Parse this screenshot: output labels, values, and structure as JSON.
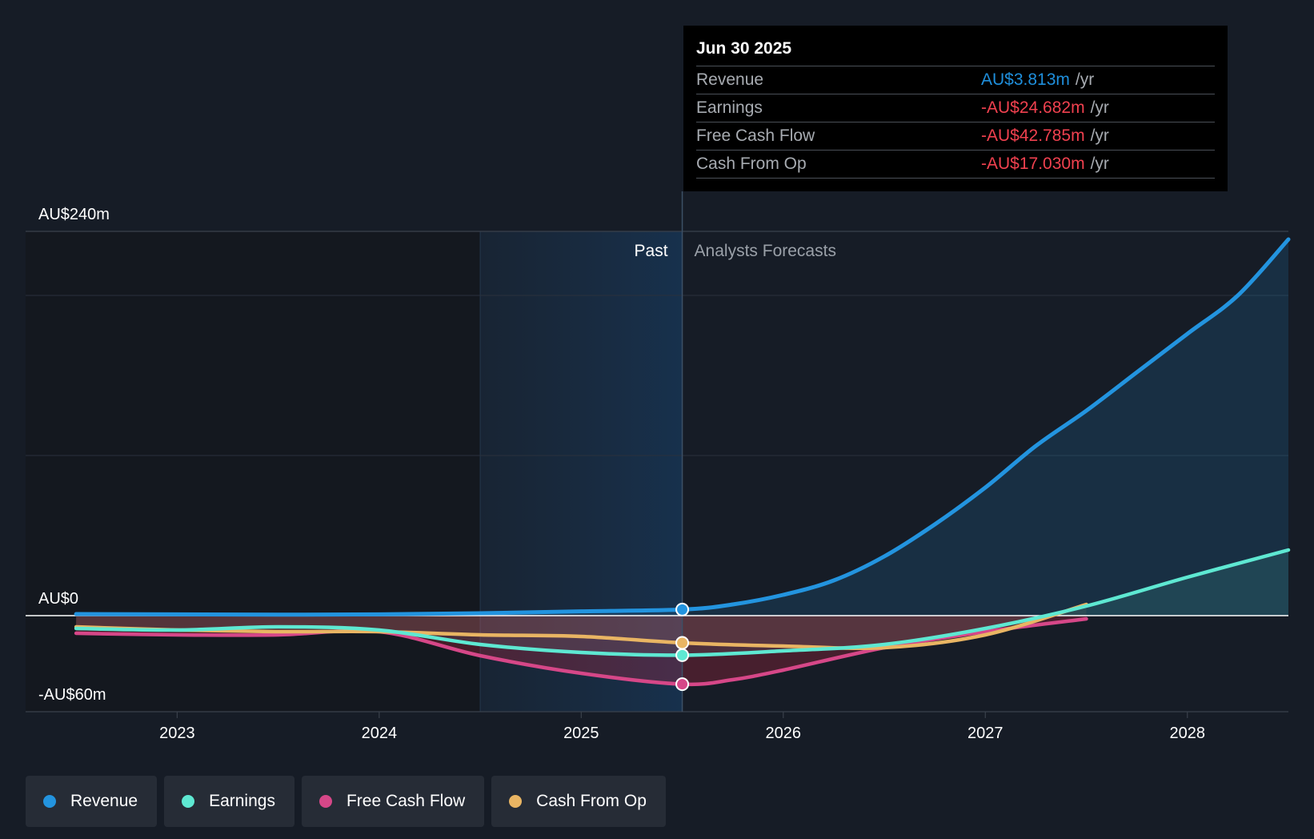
{
  "tooltip": {
    "date": "Jun 30 2025",
    "rows": [
      {
        "label": "Revenue",
        "value": "AU$3.813m",
        "unit": "/yr"
      },
      {
        "label": "Earnings",
        "value": "-AU$24.682m",
        "unit": "/yr"
      },
      {
        "label": "Free Cash Flow",
        "value": "-AU$42.785m",
        "unit": "/yr"
      },
      {
        "label": "Cash From Op",
        "value": "-AU$17.030m",
        "unit": "/yr"
      }
    ]
  },
  "labels": {
    "past": "Past",
    "forecast": "Analysts Forecasts"
  },
  "legend": [
    {
      "name": "Revenue",
      "color": "#2394df"
    },
    {
      "name": "Earnings",
      "color": "#5ee8d2"
    },
    {
      "name": "Free Cash Flow",
      "color": "#d64788"
    },
    {
      "name": "Cash From Op",
      "color": "#e9b563"
    }
  ],
  "chart_data": {
    "type": "line",
    "title": "",
    "xlabel": "",
    "ylabel": "",
    "x_ticks": [
      "2023",
      "2024",
      "2025",
      "2026",
      "2027",
      "2028"
    ],
    "x_tick_values": [
      2023.0,
      2024.0,
      2025.0,
      2026.0,
      2027.0,
      2028.0
    ],
    "y_tick_labels": [
      {
        "value": 240,
        "label": "AU$240m"
      },
      {
        "value": 0,
        "label": "AU$0"
      },
      {
        "value": -60,
        "label": "-AU$60m"
      }
    ],
    "xlim": [
      2022.25,
      2028.5
    ],
    "ylim": [
      -60,
      240
    ],
    "gridlines_y": [
      200,
      100
    ],
    "past_band_start": 2024.5,
    "forecast_start": 2025.5,
    "series": [
      {
        "name": "Revenue",
        "color": "#2394df",
        "x": [
          2022.5,
          2023.0,
          2023.5,
          2024.0,
          2024.5,
          2025.0,
          2025.5,
          2025.75,
          2026.0,
          2026.25,
          2026.5,
          2026.75,
          2027.0,
          2027.25,
          2027.5,
          2027.75,
          2028.0,
          2028.25,
          2028.5
        ],
        "y": [
          1.0,
          0.8,
          0.6,
          0.8,
          1.5,
          2.7,
          3.8,
          7,
          13,
          22,
          37,
          57,
          80,
          106,
          128,
          152,
          176,
          200,
          235
        ]
      },
      {
        "name": "Earnings",
        "color": "#5ee8d2",
        "x": [
          2022.5,
          2023.0,
          2023.5,
          2024.0,
          2024.5,
          2025.0,
          2025.5,
          2026.0,
          2026.5,
          2027.0,
          2027.5,
          2028.0,
          2028.5
        ],
        "y": [
          -8,
          -9,
          -7,
          -9,
          -18,
          -23,
          -24.7,
          -22,
          -18,
          -8,
          6,
          24,
          41
        ]
      },
      {
        "name": "Free Cash Flow",
        "color": "#d64788",
        "x": [
          2022.5,
          2023.0,
          2023.5,
          2024.0,
          2024.5,
          2025.0,
          2025.5,
          2025.75,
          2026.0,
          2026.5,
          2027.0,
          2027.5
        ],
        "y": [
          -11,
          -12,
          -12,
          -10,
          -25,
          -36,
          -42.8,
          -40,
          -34,
          -20,
          -10,
          -2
        ]
      },
      {
        "name": "Cash From Op",
        "color": "#e9b563",
        "x": [
          2022.5,
          2023.0,
          2023.5,
          2024.0,
          2024.5,
          2025.0,
          2025.5,
          2026.0,
          2026.5,
          2027.0,
          2027.5
        ],
        "y": [
          -7,
          -9,
          -10,
          -10,
          -12,
          -13,
          -17.0,
          -19,
          -20,
          -12,
          7
        ]
      }
    ]
  }
}
